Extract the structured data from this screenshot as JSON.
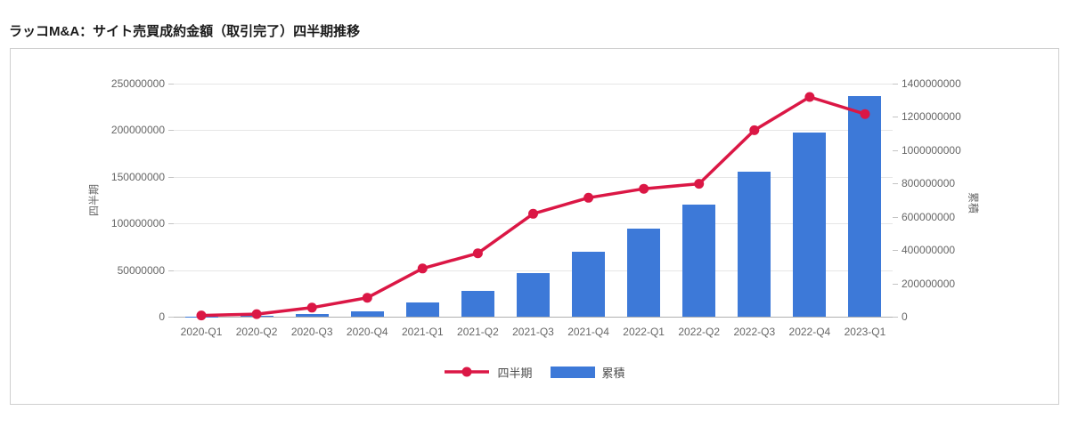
{
  "title": "ラッコM&A：サイト売買成約金額（取引完了）四半期推移",
  "chart_data": {
    "type": "combo-line-bar",
    "title": "ラッコM&A：サイト売買成約金額（取引完了）四半期推移",
    "categories": [
      "2020-Q1",
      "2020-Q2",
      "2020-Q3",
      "2020-Q4",
      "2021-Q1",
      "2021-Q2",
      "2021-Q3",
      "2021-Q4",
      "2022-Q1",
      "2022-Q2",
      "2022-Q3",
      "2022-Q4",
      "2023-Q1"
    ],
    "series": [
      {
        "name": "四半期",
        "type": "line",
        "axis": "left",
        "color": "#db1745",
        "values": [
          1300000,
          2800000,
          9700000,
          20300000,
          51700000,
          68000000,
          110400000,
          127600000,
          137200000,
          142600000,
          200000000,
          235700000,
          217400000
        ]
      },
      {
        "name": "累積",
        "type": "bar",
        "axis": "right",
        "color": "#3d79d8",
        "values": [
          1300000,
          4100000,
          13800000,
          34100000,
          85800000,
          153800000,
          264200000,
          391800000,
          529000000,
          671600000,
          871600000,
          1107300000,
          1324700000
        ]
      }
    ],
    "y_left": {
      "label": "四半期",
      "min": 0,
      "max": 250000000,
      "ticks": [
        0,
        50000000,
        100000000,
        150000000,
        200000000,
        250000000
      ]
    },
    "y_right": {
      "label": "累積",
      "min": 0,
      "max": 1400000000,
      "ticks": [
        0,
        200000000,
        400000000,
        600000000,
        800000000,
        1000000000,
        1200000000,
        1400000000
      ]
    },
    "grid": true,
    "legend_position": "bottom"
  }
}
